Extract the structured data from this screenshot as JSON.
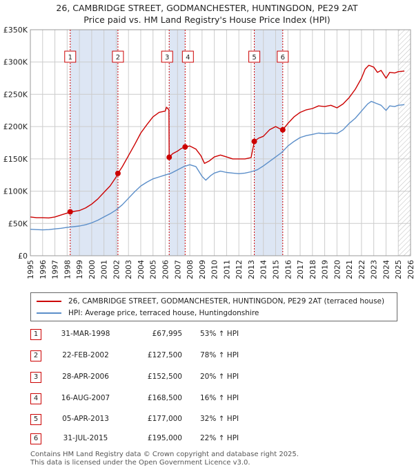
{
  "title_line1": "26, CAMBRIDGE STREET, GODMANCHESTER, HUNTINGDON, PE29 2AT",
  "title_line2": "Price paid vs. HM Land Registry's House Price Index (HPI)",
  "colors": {
    "property": "#cc0000",
    "hpi": "#5b8ec9",
    "shade": "#dde6f4",
    "grid": "#cccccc",
    "hatch": "#bbbbbb"
  },
  "chart_data": {
    "type": "line",
    "xlim": [
      1995,
      2026
    ],
    "ylim": [
      0,
      350000
    ],
    "y_ticks": [
      {
        "value": 0,
        "label": "£0"
      },
      {
        "value": 50000,
        "label": "£50K"
      },
      {
        "value": 100000,
        "label": "£100K"
      },
      {
        "value": 150000,
        "label": "£150K"
      },
      {
        "value": 200000,
        "label": "£200K"
      },
      {
        "value": 250000,
        "label": "£250K"
      },
      {
        "value": 300000,
        "label": "£300K"
      },
      {
        "value": 350000,
        "label": "£350K"
      }
    ],
    "x_ticks": [
      "1995",
      "1996",
      "1997",
      "1998",
      "1999",
      "2000",
      "2001",
      "2002",
      "2003",
      "2004",
      "2005",
      "2006",
      "2007",
      "2008",
      "2009",
      "2010",
      "2011",
      "2012",
      "2013",
      "2014",
      "2015",
      "2016",
      "2017",
      "2018",
      "2019",
      "2020",
      "2021",
      "2022",
      "2023",
      "2024",
      "2025",
      "2026"
    ],
    "shaded_ranges": [
      [
        1998.25,
        2002.14
      ],
      [
        2006.32,
        2007.62
      ],
      [
        2013.26,
        2015.58
      ]
    ],
    "hatched_from": 2025.0,
    "series": [
      {
        "name": "26, CAMBRIDGE STREET, GODMANCHESTER, HUNTINGDON, PE29 2AT (terraced house)",
        "color": "#cc0000",
        "points": [
          [
            1995.0,
            60000
          ],
          [
            1995.5,
            59000
          ],
          [
            1996.0,
            59000
          ],
          [
            1996.5,
            58500
          ],
          [
            1997.0,
            60000
          ],
          [
            1997.5,
            63000
          ],
          [
            1998.0,
            66000
          ],
          [
            1998.25,
            67995
          ],
          [
            1998.5,
            68500
          ],
          [
            1999.0,
            70000
          ],
          [
            1999.5,
            74000
          ],
          [
            2000.0,
            80000
          ],
          [
            2000.5,
            88000
          ],
          [
            2001.0,
            98000
          ],
          [
            2001.5,
            108000
          ],
          [
            2002.0,
            122000
          ],
          [
            2002.14,
            127500
          ],
          [
            2002.5,
            138000
          ],
          [
            2003.0,
            155000
          ],
          [
            2003.5,
            172000
          ],
          [
            2004.0,
            190000
          ],
          [
            2004.5,
            203000
          ],
          [
            2005.0,
            215000
          ],
          [
            2005.5,
            222000
          ],
          [
            2006.0,
            224000
          ],
          [
            2006.1,
            230000
          ],
          [
            2006.3,
            226000
          ],
          [
            2006.32,
            152500
          ],
          [
            2006.6,
            158000
          ],
          [
            2007.0,
            162000
          ],
          [
            2007.3,
            166000
          ],
          [
            2007.62,
            168500
          ],
          [
            2008.0,
            170000
          ],
          [
            2008.5,
            165000
          ],
          [
            2008.9,
            155000
          ],
          [
            2009.2,
            143000
          ],
          [
            2009.6,
            147000
          ],
          [
            2010.0,
            153000
          ],
          [
            2010.5,
            156000
          ],
          [
            2011.0,
            153000
          ],
          [
            2011.5,
            150000
          ],
          [
            2012.0,
            150000
          ],
          [
            2012.5,
            150000
          ],
          [
            2013.0,
            152000
          ],
          [
            2013.26,
            177000
          ],
          [
            2013.6,
            182000
          ],
          [
            2014.0,
            185000
          ],
          [
            2014.5,
            195000
          ],
          [
            2015.0,
            200000
          ],
          [
            2015.3,
            197000
          ],
          [
            2015.58,
            195000
          ],
          [
            2016.0,
            205000
          ],
          [
            2016.5,
            215000
          ],
          [
            2017.0,
            222000
          ],
          [
            2017.5,
            226000
          ],
          [
            2018.0,
            228000
          ],
          [
            2018.5,
            232000
          ],
          [
            2019.0,
            231000
          ],
          [
            2019.5,
            233000
          ],
          [
            2020.0,
            229000
          ],
          [
            2020.5,
            235000
          ],
          [
            2021.0,
            245000
          ],
          [
            2021.5,
            258000
          ],
          [
            2022.0,
            275000
          ],
          [
            2022.3,
            289000
          ],
          [
            2022.6,
            295000
          ],
          [
            2023.0,
            292000
          ],
          [
            2023.3,
            284000
          ],
          [
            2023.6,
            287000
          ],
          [
            2024.0,
            275000
          ],
          [
            2024.3,
            284000
          ],
          [
            2024.7,
            283000
          ],
          [
            2025.0,
            285000
          ],
          [
            2025.5,
            286000
          ]
        ]
      },
      {
        "name": "HPI: Average price, terraced house, Huntingdonshire",
        "color": "#5b8ec9",
        "points": [
          [
            1995.0,
            41000
          ],
          [
            1995.5,
            40500
          ],
          [
            1996.0,
            40000
          ],
          [
            1996.5,
            40500
          ],
          [
            1997.0,
            41500
          ],
          [
            1997.5,
            42500
          ],
          [
            1998.0,
            44000
          ],
          [
            1998.5,
            45000
          ],
          [
            1999.0,
            46000
          ],
          [
            1999.5,
            48000
          ],
          [
            2000.0,
            51000
          ],
          [
            2000.5,
            55000
          ],
          [
            2001.0,
            60000
          ],
          [
            2001.5,
            65000
          ],
          [
            2002.0,
            71000
          ],
          [
            2002.5,
            79000
          ],
          [
            2003.0,
            89000
          ],
          [
            2003.5,
            99000
          ],
          [
            2004.0,
            108000
          ],
          [
            2004.5,
            114000
          ],
          [
            2005.0,
            119000
          ],
          [
            2005.5,
            122000
          ],
          [
            2006.0,
            125000
          ],
          [
            2006.5,
            128000
          ],
          [
            2007.0,
            133000
          ],
          [
            2007.5,
            138000
          ],
          [
            2008.0,
            141000
          ],
          [
            2008.5,
            138000
          ],
          [
            2009.0,
            123000
          ],
          [
            2009.3,
            117000
          ],
          [
            2009.7,
            124000
          ],
          [
            2010.0,
            128000
          ],
          [
            2010.5,
            131000
          ],
          [
            2011.0,
            129000
          ],
          [
            2011.5,
            128000
          ],
          [
            2012.0,
            127000
          ],
          [
            2012.5,
            128000
          ],
          [
            2013.0,
            130000
          ],
          [
            2013.5,
            133000
          ],
          [
            2014.0,
            139000
          ],
          [
            2014.5,
            146000
          ],
          [
            2015.0,
            153000
          ],
          [
            2015.5,
            160000
          ],
          [
            2016.0,
            170000
          ],
          [
            2016.5,
            177000
          ],
          [
            2017.0,
            183000
          ],
          [
            2017.5,
            186000
          ],
          [
            2018.0,
            188000
          ],
          [
            2018.5,
            190000
          ],
          [
            2019.0,
            189000
          ],
          [
            2019.5,
            190000
          ],
          [
            2020.0,
            189000
          ],
          [
            2020.5,
            195000
          ],
          [
            2021.0,
            205000
          ],
          [
            2021.5,
            213000
          ],
          [
            2022.0,
            224000
          ],
          [
            2022.5,
            235000
          ],
          [
            2022.8,
            239000
          ],
          [
            2023.2,
            236000
          ],
          [
            2023.6,
            233000
          ],
          [
            2024.0,
            225000
          ],
          [
            2024.3,
            232000
          ],
          [
            2024.7,
            231000
          ],
          [
            2025.0,
            233000
          ],
          [
            2025.5,
            234000
          ]
        ]
      }
    ],
    "markers": [
      {
        "label": "1",
        "x": 1998.25,
        "y": 67995
      },
      {
        "label": "2",
        "x": 2002.14,
        "y": 127500
      },
      {
        "label": "3",
        "x": 2006.32,
        "y": 152500
      },
      {
        "label": "4",
        "x": 2007.62,
        "y": 168500
      },
      {
        "label": "5",
        "x": 2013.26,
        "y": 177000
      },
      {
        "label": "6",
        "x": 2015.58,
        "y": 195000
      }
    ]
  },
  "legend": {
    "property_label": "26, CAMBRIDGE STREET, GODMANCHESTER, HUNTINGDON, PE29 2AT (terraced house)",
    "hpi_label": "HPI: Average price, terraced house, Huntingdonshire"
  },
  "transactions": [
    {
      "num": "1",
      "date": "31-MAR-1998",
      "price": "£67,995",
      "hpi": "53% ↑ HPI"
    },
    {
      "num": "2",
      "date": "22-FEB-2002",
      "price": "£127,500",
      "hpi": "78% ↑ HPI"
    },
    {
      "num": "3",
      "date": "28-APR-2006",
      "price": "£152,500",
      "hpi": "20% ↑ HPI"
    },
    {
      "num": "4",
      "date": "16-AUG-2007",
      "price": "£168,500",
      "hpi": "16% ↑ HPI"
    },
    {
      "num": "5",
      "date": "05-APR-2013",
      "price": "£177,000",
      "hpi": "32% ↑ HPI"
    },
    {
      "num": "6",
      "date": "31-JUL-2015",
      "price": "£195,000",
      "hpi": "22% ↑ HPI"
    }
  ],
  "footer_line1": "Contains HM Land Registry data © Crown copyright and database right 2025.",
  "footer_line2": "This data is licensed under the Open Government Licence v3.0."
}
